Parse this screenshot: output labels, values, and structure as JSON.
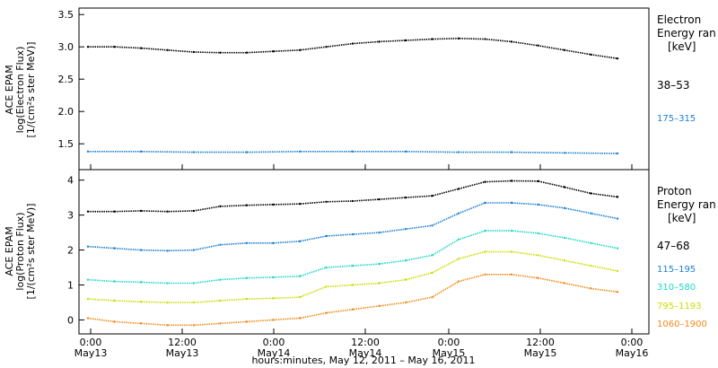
{
  "chart_data": [
    {
      "type": "scatter",
      "panel": "electron",
      "ylabel_lines": [
        "ACE EPAM",
        "log(Electron Flux)",
        "[1/(cm²s ster MeV)]"
      ],
      "ylim": [
        1.1,
        3.6
      ],
      "yticks": [
        1.5,
        2.0,
        2.5,
        3.0,
        3.5
      ],
      "ytick_labels": [
        "1.5",
        "2.0",
        "2.5",
        "3.0",
        "3.5"
      ],
      "legend": {
        "title_lines": [
          "Electron",
          "Energy ran",
          "[keV]"
        ],
        "entries": [
          "38–53",
          "175–315"
        ]
      },
      "series": [
        {
          "name": "38–53",
          "color": "#000000",
          "x": [
            0.0,
            0.5,
            1.0,
            1.5,
            2.0,
            2.5,
            3.0,
            3.5,
            4.0,
            4.5,
            5.0,
            5.5,
            6.0,
            6.5,
            7.0,
            7.5,
            8.0,
            8.5,
            9.0,
            9.5,
            10.0
          ],
          "y": [
            3.0,
            3.0,
            2.98,
            2.95,
            2.92,
            2.91,
            2.91,
            2.93,
            2.95,
            3.0,
            3.05,
            3.08,
            3.1,
            3.12,
            3.13,
            3.12,
            3.08,
            3.02,
            2.95,
            2.88,
            2.82
          ]
        },
        {
          "name": "175–315",
          "color": "#1c7fd1",
          "x": [
            0.0,
            1.0,
            2.0,
            3.0,
            4.0,
            5.0,
            6.0,
            7.0,
            8.0,
            9.0,
            10.0
          ],
          "y": [
            1.38,
            1.38,
            1.37,
            1.37,
            1.38,
            1.38,
            1.38,
            1.37,
            1.37,
            1.36,
            1.35
          ]
        }
      ]
    },
    {
      "type": "scatter",
      "panel": "proton",
      "ylabel_lines": [
        "ACE EPAM",
        "log(Proton Flux)",
        "[1/(cm²s ster MeV)]"
      ],
      "ylim": [
        -0.4,
        4.3
      ],
      "yticks": [
        0,
        1,
        2,
        3,
        4
      ],
      "ytick_labels": [
        "0",
        "1",
        "2",
        "3",
        "4"
      ],
      "legend": {
        "title_lines": [
          "Proton",
          "Energy ran",
          "[keV]"
        ],
        "entries": [
          "47–68",
          "115–195",
          "310–580",
          "795–1193",
          "1060–1900"
        ]
      },
      "series": [
        {
          "name": "47–68",
          "color": "#000000",
          "x": [
            0.0,
            0.5,
            1.0,
            1.5,
            2.0,
            2.5,
            3.0,
            3.5,
            4.0,
            4.5,
            5.0,
            5.5,
            6.0,
            6.5,
            7.0,
            7.5,
            8.0,
            8.5,
            9.0,
            9.5,
            10.0
          ],
          "y": [
            3.1,
            3.1,
            3.12,
            3.1,
            3.12,
            3.25,
            3.28,
            3.3,
            3.32,
            3.38,
            3.4,
            3.45,
            3.5,
            3.55,
            3.75,
            3.95,
            3.98,
            3.97,
            3.8,
            3.62,
            3.52
          ]
        },
        {
          "name": "115–195",
          "color": "#1c7fd1",
          "x": [
            0.0,
            0.5,
            1.0,
            1.5,
            2.0,
            2.5,
            3.0,
            3.5,
            4.0,
            4.5,
            5.0,
            5.5,
            6.0,
            6.5,
            7.0,
            7.5,
            8.0,
            8.5,
            9.0,
            9.5,
            10.0
          ],
          "y": [
            2.1,
            2.05,
            2.0,
            1.98,
            2.0,
            2.15,
            2.2,
            2.2,
            2.25,
            2.4,
            2.45,
            2.5,
            2.6,
            2.7,
            3.05,
            3.35,
            3.35,
            3.3,
            3.2,
            3.05,
            2.9
          ]
        },
        {
          "name": "310–580",
          "color": "#20d8c8",
          "x": [
            0.0,
            0.5,
            1.0,
            1.5,
            2.0,
            2.5,
            3.0,
            3.5,
            4.0,
            4.5,
            5.0,
            5.5,
            6.0,
            6.5,
            7.0,
            7.5,
            8.0,
            8.5,
            9.0,
            9.5,
            10.0
          ],
          "y": [
            1.15,
            1.1,
            1.08,
            1.05,
            1.05,
            1.15,
            1.2,
            1.22,
            1.25,
            1.5,
            1.55,
            1.6,
            1.7,
            1.85,
            2.3,
            2.55,
            2.55,
            2.48,
            2.35,
            2.2,
            2.05
          ]
        },
        {
          "name": "795–1193",
          "color": "#c8e000",
          "x": [
            0.0,
            0.5,
            1.0,
            1.5,
            2.0,
            2.5,
            3.0,
            3.5,
            4.0,
            4.5,
            5.0,
            5.5,
            6.0,
            6.5,
            7.0,
            7.5,
            8.0,
            8.5,
            9.0,
            9.5,
            10.0
          ],
          "y": [
            0.6,
            0.55,
            0.52,
            0.5,
            0.5,
            0.55,
            0.6,
            0.62,
            0.65,
            0.95,
            1.0,
            1.05,
            1.15,
            1.35,
            1.75,
            1.95,
            1.95,
            1.85,
            1.7,
            1.55,
            1.4
          ]
        },
        {
          "name": "1060–1900",
          "color": "#f08a1c",
          "x": [
            0.0,
            0.5,
            1.0,
            1.5,
            2.0,
            2.5,
            3.0,
            3.5,
            4.0,
            4.5,
            5.0,
            5.5,
            6.0,
            6.5,
            7.0,
            7.5,
            8.0,
            8.5,
            9.0,
            9.5,
            10.0
          ],
          "y": [
            0.05,
            -0.05,
            -0.1,
            -0.15,
            -0.15,
            -0.1,
            -0.05,
            0.0,
            0.05,
            0.2,
            0.3,
            0.4,
            0.5,
            0.65,
            1.1,
            1.3,
            1.3,
            1.2,
            1.05,
            0.9,
            0.8
          ]
        }
      ]
    }
  ],
  "x_axis": {
    "title": "hours:minutes, May 12, 2011 – May 16, 2011",
    "ticks": [
      {
        "time": "0:00",
        "date": "May13"
      },
      {
        "time": "12:00",
        "date": "May13"
      },
      {
        "time": "0:00",
        "date": "May14"
      },
      {
        "time": "12:00",
        "date": "May14"
      },
      {
        "time": "0:00",
        "date": "May15"
      },
      {
        "time": "12:00",
        "date": "May15"
      },
      {
        "time": "0:00",
        "date": "May16"
      }
    ]
  }
}
